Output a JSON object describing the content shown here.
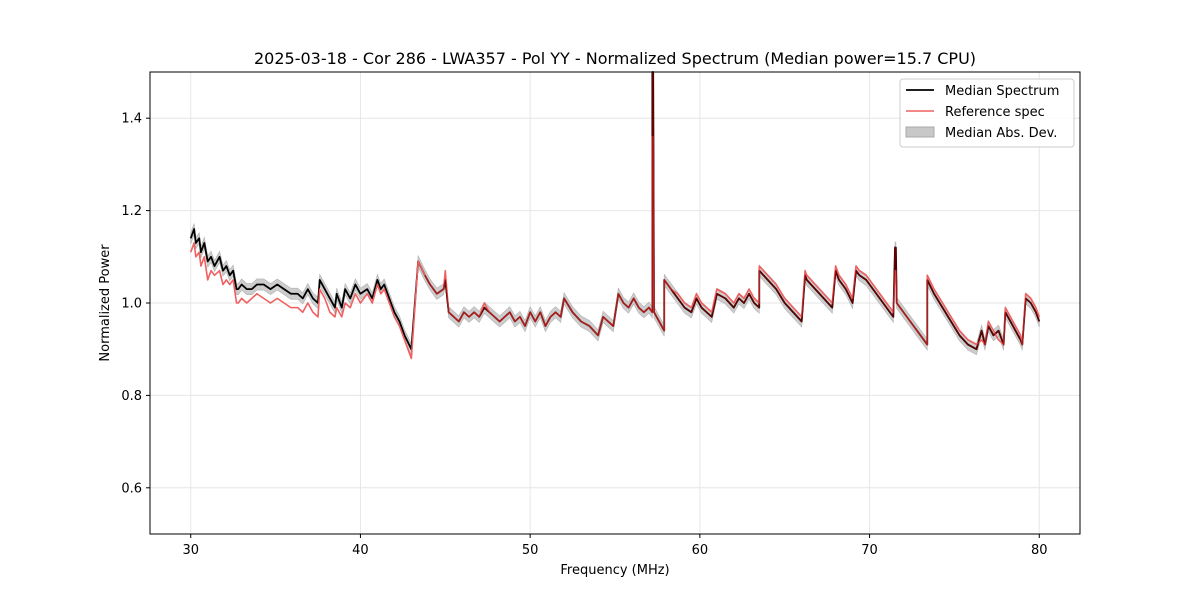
{
  "chart_data": {
    "type": "line",
    "title": "2025-03-18 - Cor 286 - LWA357 - Pol YY - Normalized Spectrum (Median power=15.7 CPU)",
    "xlabel": "Frequency (MHz)",
    "ylabel": "Normalized Power",
    "xlim": [
      27.6,
      82.4
    ],
    "ylim": [
      0.5,
      1.5
    ],
    "xticks": [
      30,
      40,
      50,
      60,
      70,
      80
    ],
    "yticks": [
      0.6,
      0.8,
      1.0,
      1.2,
      1.4
    ],
    "xtick_labels": [
      "30",
      "40",
      "50",
      "60",
      "70",
      "80"
    ],
    "ytick_labels": [
      "0.6",
      "0.8",
      "1.0",
      "1.2",
      "1.4"
    ],
    "grid": true,
    "legend_position": "top-right",
    "legend": [
      "Median Spectrum",
      "Reference spec",
      "Median Abs. Dev."
    ],
    "colors": {
      "median": "#000000",
      "reference": "#f06060",
      "mad": "#c8c8c8",
      "overlap": "#8b0000"
    },
    "series": [
      {
        "name": "Median Spectrum",
        "x": [
          30.0,
          30.2,
          30.3,
          30.5,
          30.6,
          30.8,
          31.0,
          31.2,
          31.4,
          31.7,
          31.9,
          32.1,
          32.3,
          32.5,
          32.7,
          32.8,
          33.0,
          33.3,
          33.6,
          33.9,
          34.3,
          34.7,
          35.1,
          35.5,
          35.9,
          36.3,
          36.6,
          36.9,
          37.2,
          37.5,
          37.6,
          37.9,
          38.2,
          38.5,
          38.6,
          38.9,
          39.1,
          39.4,
          39.7,
          40.0,
          40.4,
          40.7,
          41.0,
          41.2,
          41.4,
          41.6,
          41.8,
          42.0,
          42.3,
          42.6,
          43.0,
          43.4,
          43.8,
          43.8,
          44.1,
          44.5,
          44.9,
          45.0,
          45.2,
          45.5,
          45.8,
          46.1,
          46.4,
          46.7,
          47.0,
          47.3,
          47.6,
          47.9,
          48.2,
          48.5,
          48.8,
          49.1,
          49.4,
          49.7,
          50.0,
          50.3,
          50.6,
          50.9,
          51.2,
          51.5,
          51.8,
          52.0,
          52.5,
          53.0,
          53.5,
          54.0,
          54.3,
          54.6,
          54.9,
          55.2,
          55.5,
          55.8,
          56.1,
          56.4,
          56.7,
          57.0,
          57.2,
          57.2,
          57.25,
          57.3,
          57.6,
          57.9,
          57.9,
          58.3,
          58.7,
          59.1,
          59.5,
          59.8,
          60.1,
          60.4,
          60.7,
          61.0,
          61.5,
          62.0,
          62.3,
          62.6,
          62.9,
          63.2,
          63.5,
          63.5,
          64.0,
          64.5,
          65.0,
          65.5,
          66.0,
          66.2,
          66.3,
          66.8,
          67.3,
          67.8,
          68.0,
          68.2,
          68.6,
          69.0,
          69.2,
          69.4,
          69.8,
          70.2,
          70.6,
          71.0,
          71.4,
          71.5,
          71.55,
          71.6,
          72.0,
          72.4,
          72.8,
          73.2,
          73.4,
          73.4,
          73.8,
          74.3,
          74.8,
          75.3,
          75.8,
          76.3,
          76.6,
          76.8,
          77.0,
          77.3,
          77.6,
          77.9,
          78.0,
          78.3,
          78.6,
          78.9,
          79.0,
          79.2,
          79.5,
          79.8,
          80.0
        ],
        "y": [
          1.14,
          1.16,
          1.13,
          1.14,
          1.11,
          1.13,
          1.09,
          1.1,
          1.08,
          1.1,
          1.07,
          1.08,
          1.06,
          1.07,
          1.03,
          1.03,
          1.04,
          1.03,
          1.03,
          1.04,
          1.04,
          1.03,
          1.04,
          1.03,
          1.02,
          1.02,
          1.01,
          1.03,
          1.01,
          1.0,
          1.05,
          1.03,
          1.01,
          0.99,
          1.02,
          0.99,
          1.03,
          1.01,
          1.04,
          1.02,
          1.03,
          1.01,
          1.05,
          1.03,
          1.04,
          1.02,
          1.0,
          0.98,
          0.96,
          0.93,
          0.9,
          1.09,
          1.06,
          1.06,
          1.04,
          1.02,
          1.03,
          1.05,
          0.98,
          0.97,
          0.96,
          0.98,
          0.97,
          0.98,
          0.97,
          0.99,
          0.98,
          0.97,
          0.96,
          0.97,
          0.98,
          0.96,
          0.97,
          0.95,
          0.98,
          0.96,
          0.98,
          0.95,
          0.97,
          0.98,
          0.97,
          1.01,
          0.98,
          0.96,
          0.95,
          0.93,
          0.97,
          0.96,
          0.95,
          1.02,
          1.0,
          0.99,
          1.01,
          0.99,
          0.98,
          0.99,
          0.98,
          1.5,
          1.5,
          0.98,
          0.96,
          0.94,
          1.05,
          1.03,
          1.01,
          0.99,
          0.98,
          1.01,
          0.99,
          0.98,
          0.97,
          1.02,
          1.01,
          0.99,
          1.01,
          1.0,
          1.02,
          1.0,
          0.99,
          1.07,
          1.05,
          1.03,
          1.0,
          0.98,
          0.96,
          1.06,
          1.05,
          1.03,
          1.01,
          0.99,
          1.07,
          1.05,
          1.03,
          1.0,
          1.07,
          1.06,
          1.05,
          1.03,
          1.01,
          0.99,
          0.97,
          1.12,
          1.12,
          1.0,
          0.98,
          0.96,
          0.94,
          0.92,
          0.91,
          1.05,
          1.02,
          0.99,
          0.96,
          0.93,
          0.91,
          0.9,
          0.94,
          0.91,
          0.95,
          0.93,
          0.94,
          0.91,
          0.98,
          0.96,
          0.94,
          0.92,
          0.91,
          1.01,
          1.0,
          0.98,
          0.96
        ]
      },
      {
        "name": "Reference spec",
        "x": [
          30.0,
          30.2,
          30.3,
          30.5,
          30.6,
          30.8,
          31.0,
          31.2,
          31.4,
          31.7,
          31.9,
          32.1,
          32.3,
          32.5,
          32.7,
          32.8,
          33.0,
          33.3,
          33.6,
          33.9,
          34.3,
          34.7,
          35.1,
          35.5,
          35.9,
          36.3,
          36.6,
          36.9,
          37.2,
          37.5,
          37.6,
          37.9,
          38.2,
          38.5,
          38.6,
          38.9,
          39.1,
          39.4,
          39.7,
          40.0,
          40.4,
          40.7,
          41.0,
          41.2,
          41.4,
          41.6,
          41.8,
          42.0,
          42.3,
          42.6,
          43.0,
          43.4,
          43.8,
          43.8,
          44.1,
          44.5,
          44.9,
          45.0,
          45.2,
          45.5,
          45.8,
          46.1,
          46.4,
          46.7,
          47.0,
          47.3,
          47.6,
          47.9,
          48.2,
          48.5,
          48.8,
          49.1,
          49.4,
          49.7,
          50.0,
          50.3,
          50.6,
          50.9,
          51.2,
          51.5,
          51.8,
          52.0,
          52.5,
          53.0,
          53.5,
          54.0,
          54.3,
          54.6,
          54.9,
          55.2,
          55.5,
          55.8,
          56.1,
          56.4,
          56.7,
          57.0,
          57.2,
          57.2,
          57.25,
          57.3,
          57.6,
          57.9,
          57.9,
          58.3,
          58.7,
          59.1,
          59.5,
          59.8,
          60.1,
          60.4,
          60.7,
          61.0,
          61.5,
          62.0,
          62.3,
          62.6,
          62.9,
          63.2,
          63.5,
          63.5,
          64.0,
          64.5,
          65.0,
          65.5,
          66.0,
          66.2,
          66.3,
          66.8,
          67.3,
          67.8,
          68.0,
          68.2,
          68.6,
          69.0,
          69.2,
          69.4,
          69.8,
          70.2,
          70.6,
          71.0,
          71.4,
          71.5,
          71.55,
          71.6,
          72.0,
          72.4,
          72.8,
          73.2,
          73.4,
          73.4,
          73.8,
          74.3,
          74.8,
          75.3,
          75.8,
          76.3,
          76.6,
          76.8,
          77.0,
          77.3,
          77.6,
          77.9,
          78.0,
          78.3,
          78.6,
          78.9,
          79.0,
          79.2,
          79.5,
          79.8,
          80.0
        ],
        "y": [
          1.11,
          1.13,
          1.1,
          1.11,
          1.08,
          1.1,
          1.05,
          1.07,
          1.06,
          1.07,
          1.04,
          1.05,
          1.04,
          1.05,
          1.0,
          1.0,
          1.01,
          1.0,
          1.01,
          1.02,
          1.01,
          1.0,
          1.01,
          1.0,
          0.99,
          0.99,
          0.98,
          1.0,
          0.98,
          0.97,
          1.03,
          1.01,
          0.98,
          0.97,
          0.99,
          0.97,
          1.0,
          0.99,
          1.02,
          1.0,
          1.02,
          1.0,
          1.04,
          1.02,
          1.03,
          1.01,
          0.99,
          0.97,
          0.95,
          0.92,
          0.88,
          1.09,
          1.06,
          1.06,
          1.04,
          1.02,
          1.03,
          1.07,
          0.98,
          0.97,
          0.96,
          0.98,
          0.97,
          0.98,
          0.97,
          1.0,
          0.98,
          0.97,
          0.96,
          0.97,
          0.98,
          0.96,
          0.97,
          0.95,
          0.98,
          0.96,
          0.98,
          0.95,
          0.97,
          0.98,
          0.97,
          1.01,
          0.98,
          0.96,
          0.95,
          0.93,
          0.97,
          0.96,
          0.95,
          1.02,
          1.0,
          0.99,
          1.01,
          0.99,
          0.98,
          0.99,
          0.98,
          1.36,
          1.36,
          0.98,
          0.96,
          0.94,
          1.05,
          1.03,
          1.02,
          1.0,
          0.99,
          1.02,
          1.0,
          0.99,
          0.98,
          1.03,
          1.02,
          1.0,
          1.02,
          1.01,
          1.03,
          1.01,
          1.0,
          1.08,
          1.06,
          1.04,
          1.01,
          0.99,
          0.97,
          1.07,
          1.06,
          1.04,
          1.02,
          1.0,
          1.08,
          1.06,
          1.04,
          1.01,
          1.08,
          1.07,
          1.06,
          1.04,
          1.02,
          1.0,
          0.98,
          1.07,
          1.07,
          1.0,
          0.98,
          0.96,
          0.94,
          0.92,
          0.91,
          1.06,
          1.03,
          1.0,
          0.97,
          0.94,
          0.92,
          0.91,
          0.92,
          0.91,
          0.96,
          0.94,
          0.92,
          0.91,
          0.99,
          0.97,
          0.95,
          0.93,
          0.91,
          1.02,
          1.01,
          0.99,
          0.97
        ]
      }
    ],
    "mad_halfwidth": 0.012
  }
}
